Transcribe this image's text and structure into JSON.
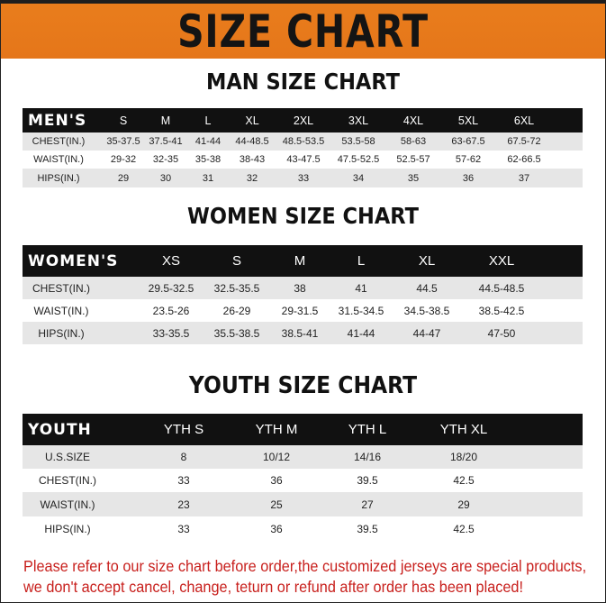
{
  "banner": {
    "title": "SIZE CHART",
    "color": "#e97d1c"
  },
  "men": {
    "title": "MAN SIZE CHART",
    "header": [
      "MEN'S",
      "S",
      "M",
      "L",
      "XL",
      "2XL",
      "3XL",
      "4XL",
      "5XL",
      "6XL"
    ],
    "rows": [
      [
        "CHEST(IN.)",
        "35-37.5",
        "37.5-41",
        "41-44",
        "44-48.5",
        "48.5-53.5",
        "53.5-58",
        "58-63",
        "63-67.5",
        "67.5-72"
      ],
      [
        "WAIST(IN.)",
        "29-32",
        "32-35",
        "35-38",
        "38-43",
        "43-47.5",
        "47.5-52.5",
        "52.5-57",
        "57-62",
        "62-66.5"
      ],
      [
        "HIPS(IN.)",
        "29",
        "30",
        "31",
        "32",
        "33",
        "34",
        "35",
        "36",
        "37"
      ]
    ]
  },
  "women": {
    "title": "WOMEN SIZE CHART",
    "header": [
      "WOMEN'S",
      "XS",
      "S",
      "M",
      "L",
      "XL",
      "XXL"
    ],
    "rows": [
      [
        "CHEST(IN.)",
        "29.5-32.5",
        "32.5-35.5",
        "38",
        "41",
        "44.5",
        "44.5-48.5"
      ],
      [
        "WAIST(IN.)",
        "23.5-26",
        "26-29",
        "29-31.5",
        "31.5-34.5",
        "34.5-38.5",
        "38.5-42.5"
      ],
      [
        "HIPS(IN.)",
        "33-35.5",
        "35.5-38.5",
        "38.5-41",
        "41-44",
        "44-47",
        "47-50"
      ]
    ]
  },
  "youth": {
    "title": "YOUTH SIZE CHART",
    "header": [
      "YOUTH",
      "YTH S",
      "YTH M",
      "YTH L",
      "YTH XL"
    ],
    "rows": [
      [
        "U.S.SIZE",
        "8",
        "10/12",
        "14/16",
        "18/20"
      ],
      [
        "CHEST(IN.)",
        "33",
        "36",
        "39.5",
        "42.5"
      ],
      [
        "WAIST(IN.)",
        "23",
        "25",
        "27",
        "29"
      ],
      [
        "HIPS(IN.)",
        "33",
        "36",
        "39.5",
        "42.5"
      ]
    ]
  },
  "footer": {
    "line1": "Please refer to our size chart before order,the customized jerseys are special products,",
    "line2": "we don't accept cancel, change, teturn or refund after order has been placed!",
    "color": "#c8201d"
  }
}
